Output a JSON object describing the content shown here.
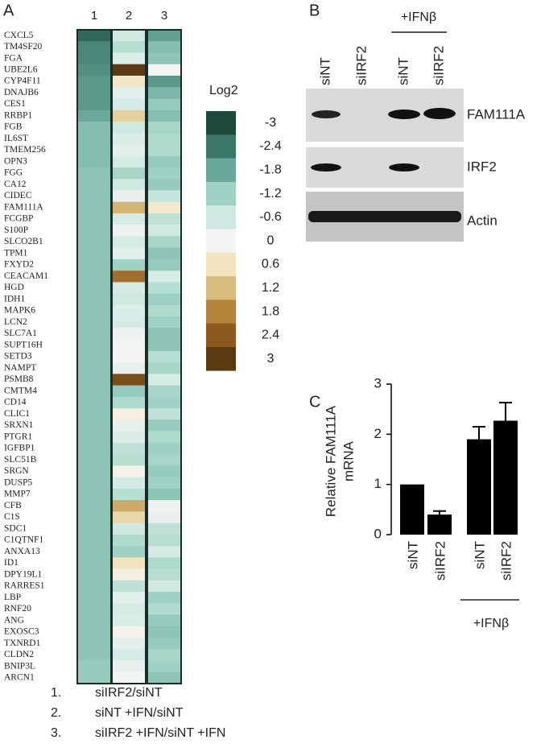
{
  "panel_labels": [
    "A",
    "B",
    "C"
  ],
  "heatmap": {
    "columns": [
      "1",
      "2",
      "3"
    ],
    "genes": [
      "CXCL5",
      "TM4SF20",
      "FGA",
      "UBE2L6",
      "CYP4F11",
      "DNAJB6",
      "CES1",
      "RRBP1",
      "FGB",
      "IL6ST",
      "TMEM256",
      "OPN3",
      "FGG",
      "CA12",
      "CIDEC",
      "FAM111A",
      "FCGBP",
      "S100P",
      "SLCO2B1",
      "TPM1",
      "FXYD2",
      "CEACAM1",
      "HGD",
      "IDH1",
      "MAPK6",
      "LCN2",
      "SLC7A1",
      "SUPT16H",
      "SETD3",
      "NAMPT",
      "PSMB8",
      "CMTM4",
      "CD14",
      "CLIC1",
      "SRXN1",
      "PTGR1",
      "IGFBP1",
      "SLC51B",
      "SRGN",
      "DUSP5",
      "MMP7",
      "CFB",
      "C1S",
      "SDC1",
      "C1QTNF1",
      "ANXA13",
      "ID1",
      "DPY19L1",
      "RARRES1",
      "LBP",
      "RNF20",
      "ANG",
      "EXOSC3",
      "TXNRD1",
      "CLDN2",
      "BNIP3L",
      "ARCN1"
    ],
    "values": [
      [
        -2.6,
        -0.6,
        -1.9
      ],
      [
        -2.2,
        -0.9,
        -1.5
      ],
      [
        -2.2,
        -0.4,
        -1.4
      ],
      [
        -2.1,
        3,
        0
      ],
      [
        -2,
        0.5,
        -2
      ],
      [
        -2,
        -0.3,
        -1.6
      ],
      [
        -2,
        -0.5,
        -1.3
      ],
      [
        -1.8,
        0.9,
        -1.5
      ],
      [
        -1.5,
        -0.6,
        -1.1
      ],
      [
        -1.5,
        -0.4,
        -1
      ],
      [
        -1.5,
        -0.3,
        -1
      ],
      [
        -1.5,
        -0.5,
        -1.3
      ],
      [
        -1.4,
        -1.1,
        -1.2
      ],
      [
        -1.4,
        -0.6,
        -1.3
      ],
      [
        -1.4,
        -0.2,
        -0.7
      ],
      [
        -1.4,
        1.3,
        0.4
      ],
      [
        -1.4,
        -0.5,
        -0.8
      ],
      [
        -1.4,
        -0.1,
        -0.6
      ],
      [
        -1.4,
        -0.5,
        -1.1
      ],
      [
        -1.4,
        -0.3,
        -1.4
      ],
      [
        -1.4,
        -1.2,
        -1.3
      ],
      [
        -1.4,
        2.1,
        -0.5
      ],
      [
        -1.4,
        -0.5,
        -0.9
      ],
      [
        -1.4,
        -0.6,
        -1.2
      ],
      [
        -1.4,
        -0.4,
        -1
      ],
      [
        -1.4,
        -0.5,
        -1.2
      ],
      [
        -1.4,
        -0.1,
        -1.4
      ],
      [
        -1.4,
        0,
        -1.4
      ],
      [
        -1.4,
        0,
        -0.9
      ],
      [
        -1.4,
        -0.2,
        -1.1
      ],
      [
        -1.4,
        2.6,
        -0.5
      ],
      [
        -1.4,
        -1.3,
        -1.1
      ],
      [
        -1.4,
        -1,
        -1.2
      ],
      [
        -1.4,
        0.2,
        -0.8
      ],
      [
        -1.4,
        -0.2,
        -1.3
      ],
      [
        -1.4,
        -0.4,
        -1
      ],
      [
        -1.4,
        -0.8,
        -1.2
      ],
      [
        -1.4,
        -0.9,
        -1.1
      ],
      [
        -1.4,
        0.1,
        -1.3
      ],
      [
        -1.4,
        -0.5,
        -1.2
      ],
      [
        -1.4,
        -0.9,
        -1.4
      ],
      [
        -1.4,
        1.4,
        -0.1
      ],
      [
        -1.4,
        0.8,
        -0.2
      ],
      [
        -1.4,
        -0.6,
        -0.8
      ],
      [
        -1.4,
        -1,
        -0.9
      ],
      [
        -1.4,
        -1.2,
        -0.5
      ],
      [
        -1.4,
        0.6,
        -1
      ],
      [
        -1.4,
        0.2,
        -0.9
      ],
      [
        -1.4,
        -0.8,
        -0.6
      ],
      [
        -1.4,
        -0.3,
        -1.2
      ],
      [
        -1.4,
        -0.5,
        -1
      ],
      [
        -1.4,
        -0.4,
        -1.3
      ],
      [
        -1.4,
        0.1,
        -1.4
      ],
      [
        -1.4,
        -0.3,
        -1.3
      ],
      [
        -1.4,
        -0.5,
        -1.1
      ],
      [
        -1.3,
        -0.2,
        -1.2
      ],
      [
        -1.3,
        0,
        -1.4
      ]
    ],
    "scale": {
      "title": "Log2",
      "ticks": [
        -3,
        -2.4,
        -1.8,
        -1.2,
        -0.6,
        0,
        0.6,
        1.2,
        1.8,
        2.4,
        3
      ],
      "colors": [
        "#1e4a3e",
        "#3a7767",
        "#6aa89a",
        "#9fd2c4",
        "#cfe9e2",
        "#f4f4f2",
        "#f1e4bf",
        "#d8bd7f",
        "#b3853c",
        "#8c5a1e",
        "#5a3a12"
      ]
    }
  },
  "legend": [
    {
      "num": "1.",
      "text": "siIRF2/siNT"
    },
    {
      "num": "2.",
      "text": "siNT +IFN/siNT"
    },
    {
      "num": "3.",
      "text": "siIRF2 +IFN/siNT +IFN"
    }
  ],
  "blot": {
    "treatment": "+IFNβ",
    "lanes": [
      "siNT",
      "siIRF2",
      "siNT",
      "siIRF2"
    ],
    "rows": [
      "FAM111A",
      "IRF2",
      "Actin"
    ]
  },
  "chart_data": {
    "type": "bar",
    "y_label": [
      "Relative  FAM111A",
      "mRNA"
    ],
    "categories": [
      "siNT",
      "siIRF2",
      "siNT",
      "siIRF2"
    ],
    "values": [
      1,
      0.4,
      1.9,
      2.27
    ],
    "errors": [
      0,
      0.07,
      0.25,
      0.36
    ],
    "color": "#000000",
    "ylim": [
      0,
      3
    ],
    "yticks": [
      0,
      1,
      2,
      3
    ],
    "group_label": "+IFNβ"
  }
}
